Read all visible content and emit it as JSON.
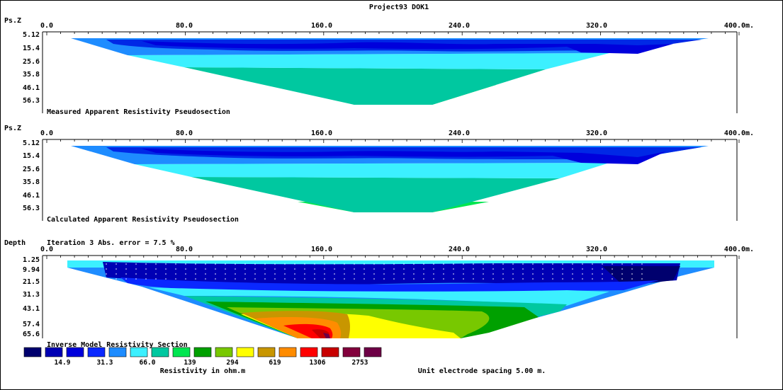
{
  "title": "Project93 DOK1",
  "x_ticks": [
    "0.0",
    "80.0",
    "160.0",
    "240.0",
    "320.0",
    "400.0m."
  ],
  "panels": [
    {
      "name": "measured",
      "axis_label": "Ps.Z",
      "depth_ticks": [
        "5.12",
        "15.4",
        "25.6",
        "35.8",
        "46.1",
        "56.3"
      ],
      "caption": "Measured Apparent Resistivity Pseudosection"
    },
    {
      "name": "calculated",
      "axis_label": "Ps.Z",
      "depth_ticks": [
        "5.12",
        "15.4",
        "25.6",
        "35.8",
        "46.1",
        "56.3"
      ],
      "caption": "Calculated Apparent Resistivity Pseudosection"
    },
    {
      "name": "model",
      "axis_label": "Depth",
      "iteration_text": "Iteration 3 Abs. error = 7.5 %",
      "depth_ticks": [
        "1.25",
        "9.94",
        "21.5",
        "31.3",
        "43.1",
        "57.4",
        "65.6"
      ],
      "caption": "Inverse Model Resistivity Section"
    }
  ],
  "legend": {
    "colors": [
      "#00006e",
      "#0000b4",
      "#0000dc",
      "#0a28ff",
      "#1e8cff",
      "#3cf0ff",
      "#00c8a0",
      "#00e650",
      "#00a000",
      "#78c800",
      "#ffff00",
      "#c89600",
      "#ff8c00",
      "#ff0000",
      "#c80000",
      "#82003c",
      "#6e0046"
    ],
    "value_labels": [
      "14.9",
      "31.3",
      "66.0",
      "139",
      "294",
      "619",
      "1306",
      "2753"
    ],
    "unit_label": "Resistivity in ohm.m"
  },
  "spacing_note": "Unit electrode spacing 5.00 m."
}
